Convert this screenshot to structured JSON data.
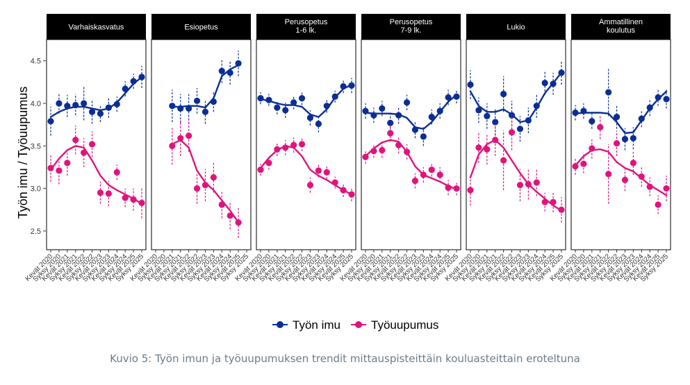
{
  "caption": "Kuvio 5: Työn imun ja työuupumuksen trendit mittauspisteittäin kouluasteittain eroteltuna",
  "chart_data": {
    "type": "scatter",
    "facet_by": "kouluaste",
    "ylabel": "Työn imu / Työuupumus",
    "xlabel": "",
    "ylim": [
      2.28,
      4.75
    ],
    "yticks": [
      2.5,
      3.0,
      3.5,
      4.0,
      4.5
    ],
    "x_ticks": [
      "Kevät 2020",
      "Syksy 2020",
      "Kevät 2021",
      "Syksy 2021",
      "Kevät 2022",
      "Syksy 2022",
      "Kevät 2023",
      "Syksy 2023",
      "Kevät 2024",
      "Syksy 2024",
      "Kevät 2025",
      "Syksy 2025"
    ],
    "legend": [
      {
        "name": "Työn imu",
        "color": "#0a2e96"
      },
      {
        "name": "Työuupumus",
        "color": "#e0137e"
      }
    ],
    "legend_position": "bottom",
    "panels": [
      {
        "title": "Varhaiskasvatus",
        "series": [
          {
            "name": "Työn imu",
            "values": [
              3.79,
              4.0,
              3.97,
              3.98,
              4.0,
              3.9,
              3.88,
              3.95,
              3.99,
              4.17,
              4.26,
              4.31
            ],
            "ci_low": [
              3.62,
              3.88,
              3.84,
              3.86,
              3.8,
              3.76,
              3.78,
              3.83,
              3.9,
              4.08,
              4.17,
              4.18
            ],
            "ci_high": [
              3.96,
              4.12,
              4.1,
              4.11,
              4.2,
              4.04,
              3.98,
              4.07,
              4.08,
              4.26,
              4.35,
              4.44
            ],
            "trend": [
              3.84,
              3.9,
              3.94,
              3.96,
              3.96,
              3.94,
              3.92,
              3.94,
              4.01,
              4.12,
              4.23,
              4.31
            ]
          },
          {
            "name": "Työuupumus",
            "values": [
              3.24,
              3.21,
              3.3,
              3.57,
              3.42,
              3.52,
              2.95,
              2.94,
              3.19,
              2.89,
              2.87,
              2.83
            ],
            "ci_low": [
              3.08,
              3.05,
              3.15,
              3.4,
              3.25,
              3.37,
              2.82,
              2.79,
              3.1,
              2.78,
              2.74,
              2.65
            ],
            "ci_high": [
              3.4,
              3.37,
              3.45,
              3.74,
              3.59,
              3.67,
              3.08,
              3.09,
              3.28,
              3.0,
              3.0,
              3.01
            ],
            "trend": [
              3.22,
              3.35,
              3.45,
              3.5,
              3.48,
              3.33,
              3.15,
              3.04,
              2.98,
              2.93,
              2.88,
              2.82
            ]
          }
        ]
      },
      {
        "title": "Esiopetus",
        "series": [
          {
            "name": "Työn imu",
            "values": [
              null,
              null,
              3.97,
              3.94,
              3.94,
              4.03,
              3.9,
              4.02,
              4.38,
              4.36,
              4.47,
              null
            ],
            "ci_low": [
              null,
              null,
              3.78,
              3.77,
              3.76,
              3.88,
              3.76,
              3.9,
              4.24,
              4.22,
              4.32,
              null
            ],
            "ci_high": [
              null,
              null,
              4.16,
              4.11,
              4.12,
              4.18,
              4.04,
              4.14,
              4.52,
              4.5,
              4.62,
              null
            ],
            "trend": [
              null,
              null,
              3.96,
              3.96,
              3.97,
              3.97,
              3.95,
              4.06,
              4.32,
              4.4,
              4.45,
              null
            ]
          },
          {
            "name": "Työuupumus",
            "values": [
              null,
              null,
              3.5,
              3.59,
              3.62,
              3.0,
              3.04,
              3.13,
              2.81,
              2.68,
              2.6,
              null
            ],
            "ci_low": [
              null,
              null,
              3.28,
              3.38,
              3.43,
              2.82,
              2.85,
              2.95,
              2.65,
              2.52,
              2.42,
              null
            ],
            "ci_high": [
              null,
              null,
              3.72,
              3.8,
              3.81,
              3.18,
              3.23,
              3.31,
              2.97,
              2.84,
              2.78,
              null
            ],
            "trend": [
              null,
              null,
              3.52,
              3.57,
              3.48,
              3.21,
              3.07,
              2.98,
              2.86,
              2.74,
              2.6,
              null
            ]
          }
        ]
      },
      {
        "title": "Perusopetus\n1-6 lk.",
        "series": [
          {
            "name": "Työn imu",
            "values": [
              4.06,
              4.04,
              3.95,
              3.92,
              4.01,
              4.06,
              3.83,
              3.76,
              3.97,
              4.08,
              4.2,
              4.21
            ],
            "ci_low": [
              3.99,
              3.97,
              3.87,
              3.83,
              3.93,
              3.98,
              3.74,
              3.66,
              3.89,
              4.01,
              4.12,
              4.12
            ],
            "ci_high": [
              4.13,
              4.11,
              4.03,
              4.01,
              4.09,
              4.14,
              3.92,
              3.86,
              4.05,
              4.15,
              4.28,
              4.3
            ],
            "trend": [
              4.05,
              4.03,
              4.0,
              3.98,
              3.98,
              3.96,
              3.87,
              3.84,
              3.93,
              4.07,
              4.17,
              4.22
            ]
          },
          {
            "name": "Työuupumus",
            "values": [
              3.22,
              3.3,
              3.46,
              3.48,
              3.51,
              3.52,
              3.04,
              3.21,
              3.19,
              3.07,
              2.98,
              2.93
            ],
            "ci_low": [
              3.15,
              3.22,
              3.38,
              3.39,
              3.42,
              3.44,
              2.95,
              3.13,
              3.11,
              3.0,
              2.9,
              2.85
            ],
            "ci_high": [
              3.29,
              3.38,
              3.54,
              3.57,
              3.6,
              3.6,
              3.13,
              3.29,
              3.27,
              3.14,
              3.06,
              3.01
            ],
            "trend": [
              3.24,
              3.36,
              3.45,
              3.5,
              3.48,
              3.38,
              3.22,
              3.15,
              3.1,
              3.04,
              2.98,
              2.93
            ]
          }
        ]
      },
      {
        "title": "Perusopetus\n7-9 lk.",
        "series": [
          {
            "name": "Työn imu",
            "values": [
              3.91,
              3.86,
              3.94,
              3.77,
              3.86,
              4.01,
              3.69,
              3.61,
              3.84,
              3.91,
              4.07,
              4.08
            ],
            "ci_low": [
              3.82,
              3.77,
              3.85,
              3.66,
              3.76,
              3.92,
              3.59,
              3.5,
              3.75,
              3.82,
              3.98,
              4.0
            ],
            "ci_high": [
              4.0,
              3.95,
              4.03,
              3.88,
              3.96,
              4.1,
              3.79,
              3.72,
              3.93,
              4.0,
              4.16,
              4.16
            ],
            "trend": [
              3.89,
              3.88,
              3.88,
              3.88,
              3.87,
              3.83,
              3.72,
              3.7,
              3.78,
              3.9,
              4.02,
              4.1
            ]
          },
          {
            "name": "Työuupumus",
            "values": [
              3.37,
              3.44,
              3.45,
              3.65,
              3.51,
              3.43,
              3.09,
              3.16,
              3.22,
              3.16,
              3.01,
              3.0
            ],
            "ci_low": [
              3.29,
              3.36,
              3.36,
              3.55,
              3.41,
              3.34,
              3.0,
              3.07,
              3.14,
              3.07,
              2.92,
              2.92
            ],
            "ci_high": [
              3.45,
              3.52,
              3.54,
              3.75,
              3.61,
              3.52,
              3.18,
              3.25,
              3.3,
              3.25,
              3.1,
              3.08
            ],
            "trend": [
              3.38,
              3.47,
              3.54,
              3.57,
              3.55,
              3.43,
              3.26,
              3.16,
              3.12,
              3.08,
              3.03,
              2.99
            ]
          }
        ]
      },
      {
        "title": "Lukio",
        "series": [
          {
            "name": "Työn imu",
            "values": [
              4.22,
              3.92,
              3.85,
              3.78,
              4.11,
              3.86,
              3.7,
              3.8,
              3.97,
              4.24,
              4.23,
              4.36
            ],
            "ci_low": [
              4.05,
              3.77,
              3.7,
              3.62,
              3.9,
              3.69,
              3.55,
              3.65,
              3.83,
              4.1,
              4.1,
              4.22
            ],
            "ci_high": [
              4.39,
              4.07,
              4.0,
              3.94,
              4.32,
              4.03,
              3.85,
              3.95,
              4.11,
              4.38,
              4.36,
              4.5
            ],
            "trend": [
              4.14,
              3.97,
              3.9,
              3.9,
              3.93,
              3.87,
              3.78,
              3.8,
              3.95,
              4.12,
              4.24,
              4.36
            ]
          },
          {
            "name": "Työuupumus",
            "values": [
              2.98,
              3.48,
              3.46,
              3.57,
              3.33,
              3.66,
              3.04,
              3.05,
              3.07,
              2.84,
              2.84,
              2.75
            ],
            "ci_low": [
              2.8,
              3.3,
              3.28,
              3.38,
              2.98,
              3.45,
              2.85,
              2.87,
              2.91,
              2.73,
              2.72,
              2.6
            ],
            "ci_high": [
              3.16,
              3.66,
              3.64,
              3.76,
              3.68,
              3.87,
              3.23,
              3.23,
              3.23,
              2.95,
              2.96,
              2.9
            ],
            "trend": [
              3.13,
              3.4,
              3.52,
              3.57,
              3.48,
              3.33,
              3.18,
              3.05,
              2.96,
              2.88,
              2.8,
              2.74
            ]
          }
        ]
      },
      {
        "title": "Ammatillinen\nkoulutus",
        "series": [
          {
            "name": "Työn imu",
            "values": [
              3.89,
              3.91,
              3.79,
              null,
              4.13,
              3.84,
              3.58,
              3.59,
              3.82,
              3.95,
              4.07,
              4.05
            ],
            "ci_low": [
              3.8,
              3.82,
              3.7,
              null,
              3.85,
              3.7,
              3.45,
              3.46,
              3.72,
              3.85,
              3.97,
              3.94
            ],
            "ci_high": [
              3.98,
              4.0,
              3.88,
              null,
              4.41,
              3.98,
              3.71,
              3.72,
              3.92,
              4.05,
              4.17,
              4.16
            ],
            "trend": [
              3.88,
              3.89,
              3.89,
              3.89,
              3.88,
              3.78,
              3.65,
              3.66,
              3.8,
              3.94,
              4.05,
              4.14
            ]
          },
          {
            "name": "Työuupumus",
            "values": [
              3.26,
              3.29,
              3.47,
              3.72,
              3.17,
              3.53,
              3.1,
              3.3,
              3.14,
              3.02,
              2.81,
              3.0
            ],
            "ci_low": [
              3.16,
              3.18,
              3.35,
              3.58,
              2.82,
              3.38,
              2.97,
              3.16,
              3.02,
              2.91,
              2.7,
              2.85
            ],
            "ci_high": [
              3.36,
              3.4,
              3.59,
              3.86,
              3.52,
              3.68,
              3.23,
              3.44,
              3.26,
              3.13,
              2.92,
              3.15
            ],
            "trend": [
              3.27,
              3.38,
              3.45,
              3.46,
              3.43,
              3.31,
              3.24,
              3.2,
              3.12,
              3.04,
              2.98,
              2.92
            ]
          }
        ]
      }
    ]
  }
}
